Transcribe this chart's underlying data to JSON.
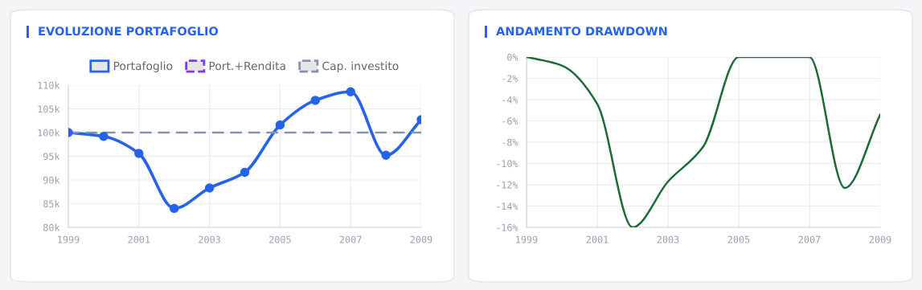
{
  "chart_data": [
    {
      "type": "line",
      "title": "EVOLUZIONE PORTAFOGLIO",
      "categories": [
        "1999",
        null,
        "2001",
        null,
        "2003",
        null,
        "2005",
        null,
        "2007",
        null,
        "2009"
      ],
      "series": [
        {
          "name": "Portafoglio",
          "color": "#2563eb",
          "marker": "circle",
          "line_style": "solid",
          "values": [
            100000,
            99200,
            95600,
            84000,
            88300,
            91600,
            101600,
            106800,
            108600,
            95200,
            102700
          ]
        },
        {
          "name": "Port.+Rendita",
          "color": "#7c3aed",
          "line_style": "dashed",
          "values": [
            null,
            null,
            null,
            null,
            null,
            null,
            null,
            null,
            null,
            null,
            null
          ]
        },
        {
          "name": "Cap. investito",
          "color": "#8393b0",
          "marker": "none",
          "line_style": "dashed",
          "values": [
            100000,
            100000,
            100000,
            100000,
            100000,
            100000,
            100000,
            100000,
            100000,
            100000,
            100000
          ]
        }
      ],
      "ylim": [
        80000,
        110000
      ],
      "yticks": [
        {
          "value": 80000,
          "label": "80k"
        },
        {
          "value": 85000,
          "label": "85k"
        },
        {
          "value": 90000,
          "label": "90k"
        },
        {
          "value": 95000,
          "label": "95k"
        },
        {
          "value": 100000,
          "label": "100k"
        },
        {
          "value": 105000,
          "label": "105k"
        },
        {
          "value": 110000,
          "label": "110k"
        }
      ],
      "grid": true,
      "legend": "top"
    },
    {
      "type": "line",
      "title": "ANDAMENTO DRAWDOWN",
      "categories": [
        "1999",
        null,
        "2001",
        null,
        "2003",
        null,
        "2005",
        null,
        "2007",
        null,
        "2009"
      ],
      "series": [
        {
          "color": "#1b6b35",
          "marker": "none",
          "line_style": "solid",
          "values": [
            0,
            -0.8,
            -4.4,
            -16,
            -11.7,
            -8.4,
            0,
            0,
            0,
            -12.3,
            -5.4
          ]
        }
      ],
      "ylim": [
        -16,
        0
      ],
      "yticks": [
        {
          "value": -16,
          "label": "-16%"
        },
        {
          "value": -14,
          "label": "-14%"
        },
        {
          "value": -12,
          "label": "-12%"
        },
        {
          "value": -10,
          "label": "-10%"
        },
        {
          "value": -8,
          "label": "-8%"
        },
        {
          "value": -6,
          "label": "-6%"
        },
        {
          "value": -4,
          "label": "-4%"
        },
        {
          "value": -2,
          "label": "-2%"
        },
        {
          "value": 0,
          "label": "0%"
        }
      ],
      "grid": true
    }
  ]
}
